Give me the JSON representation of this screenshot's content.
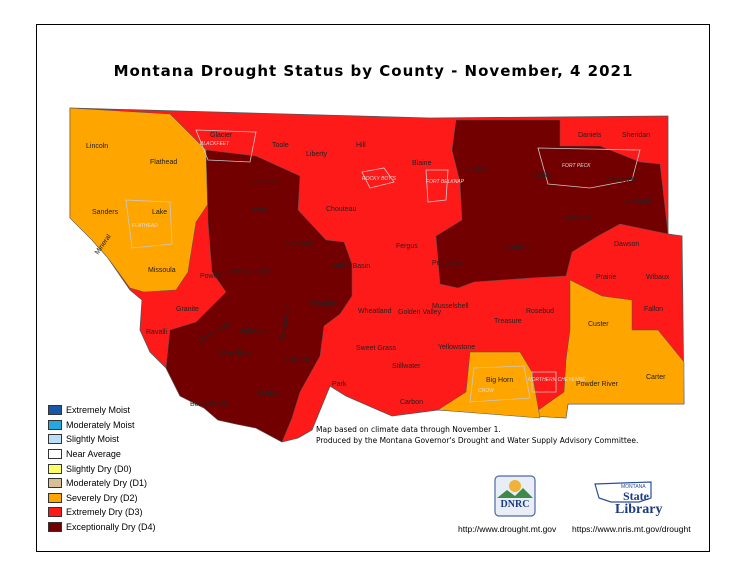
{
  "title": "Montana Drought Status by County - November, 4 2021",
  "legend": [
    {
      "label": "Extremely Moist",
      "color": "#1a56a6"
    },
    {
      "label": "Moderately Moist",
      "color": "#27a7e0"
    },
    {
      "label": "Slightly Moist",
      "color": "#b9def5"
    },
    {
      "label": "Near Average",
      "color": "#ffffff"
    },
    {
      "label": "Slightly Dry (D0)",
      "color": "#ffff66"
    },
    {
      "label": "Moderately Dry (D1)",
      "color": "#d8c096"
    },
    {
      "label": "Severely Dry (D2)",
      "color": "#ffa500"
    },
    {
      "label": "Extremely Dry (D3)",
      "color": "#ff1a1a"
    },
    {
      "label": "Exceptionally Dry (D4)",
      "color": "#730000"
    }
  ],
  "note_line1": "Map based on climate data through November 1.",
  "note_line2": "Produced by the Montana Governor's Drought and Water Supply Advisory Committee.",
  "url_dnrc": "http://www.drought.mt.gov",
  "url_nris": "https://www.nris.mt.gov/drought",
  "dnrc_logo_text": "DNRC",
  "library_logo_top": "MONTANA",
  "library_logo_main1": "State",
  "library_logo_main2": "Library",
  "reservations": [
    "BLACKFEET",
    "ROCKY BOY'S",
    "FORT BELKNAP",
    "FORT PECK",
    "FLATHEAD",
    "CROW",
    "NORTHERN CHEYENNE"
  ],
  "counties": [
    {
      "name": "Lincoln",
      "level": "D2"
    },
    {
      "name": "Flathead",
      "level": "D2"
    },
    {
      "name": "Glacier",
      "level": "D3"
    },
    {
      "name": "Toole",
      "level": "D3"
    },
    {
      "name": "Liberty",
      "level": "D3"
    },
    {
      "name": "Hill",
      "level": "D3"
    },
    {
      "name": "Blaine",
      "level": "D3"
    },
    {
      "name": "Phillips",
      "level": "D4"
    },
    {
      "name": "Valley",
      "level": "D4"
    },
    {
      "name": "Daniels",
      "level": "D3"
    },
    {
      "name": "Sheridan",
      "level": "D3"
    },
    {
      "name": "Roosevelt",
      "level": "D4"
    },
    {
      "name": "Richland",
      "level": "D4"
    },
    {
      "name": "Sanders",
      "level": "D2"
    },
    {
      "name": "Lake",
      "level": "D2"
    },
    {
      "name": "Mineral",
      "level": "D2"
    },
    {
      "name": "Missoula",
      "level": "D2"
    },
    {
      "name": "Pondera",
      "level": "D4"
    },
    {
      "name": "Teton",
      "level": "D4"
    },
    {
      "name": "Chouteau",
      "level": "D3"
    },
    {
      "name": "Cascade",
      "level": "D4"
    },
    {
      "name": "Lewis & Clark",
      "level": "D4"
    },
    {
      "name": "Powell",
      "level": "D3"
    },
    {
      "name": "Fergus",
      "level": "D3"
    },
    {
      "name": "Judith Basin",
      "level": "D4"
    },
    {
      "name": "Petroleum",
      "level": "D4"
    },
    {
      "name": "Garfield",
      "level": "D4"
    },
    {
      "name": "McCone",
      "level": "D4"
    },
    {
      "name": "Dawson",
      "level": "D3"
    },
    {
      "name": "Prairie",
      "level": "D3"
    },
    {
      "name": "Wibaux",
      "level": "D3"
    },
    {
      "name": "Ravalli",
      "level": "D3"
    },
    {
      "name": "Granite",
      "level": "D3"
    },
    {
      "name": "Deer Lodge",
      "level": "D4"
    },
    {
      "name": "Jefferson",
      "level": "D4"
    },
    {
      "name": "Broadwater",
      "level": "D4"
    },
    {
      "name": "Meagher",
      "level": "D4"
    },
    {
      "name": "Wheatland",
      "level": "D3"
    },
    {
      "name": "Golden Valley",
      "level": "D3"
    },
    {
      "name": "Musselshell",
      "level": "D3"
    },
    {
      "name": "Rosebud",
      "level": "D3"
    },
    {
      "name": "Custer",
      "level": "D2"
    },
    {
      "name": "Fallon",
      "level": "D3"
    },
    {
      "name": "Silver Bow",
      "level": "D4"
    },
    {
      "name": "Treasure",
      "level": "D3"
    },
    {
      "name": "Beaverhead",
      "level": "D4"
    },
    {
      "name": "Madison",
      "level": "D4"
    },
    {
      "name": "Gallatin",
      "level": "D4"
    },
    {
      "name": "Park",
      "level": "D3"
    },
    {
      "name": "Sweet Grass",
      "level": "D3"
    },
    {
      "name": "Stillwater",
      "level": "D3"
    },
    {
      "name": "Yellowstone",
      "level": "D3"
    },
    {
      "name": "Big Horn",
      "level": "D2"
    },
    {
      "name": "Carbon",
      "level": "D3"
    },
    {
      "name": "Powder River",
      "level": "D2"
    },
    {
      "name": "Carter",
      "level": "D2"
    }
  ]
}
